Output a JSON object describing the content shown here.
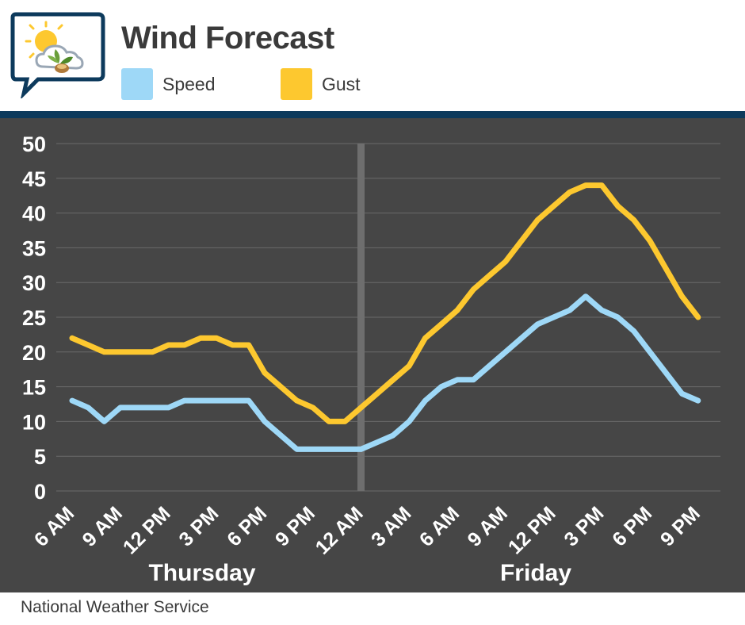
{
  "header": {
    "title": "Wind Forecast",
    "logo_icon": "weather-chat-bubble-icon"
  },
  "footer": {
    "source": "National Weather Service"
  },
  "colors": {
    "speed": "#9ed8f7",
    "gust": "#fdc82f",
    "background": "#464646",
    "divider": "#0d3a5c",
    "grid": "#6a6a6a",
    "midnight_line": "#6e6e6e"
  },
  "chart_data": {
    "type": "line",
    "title": "Wind Forecast",
    "xlabel": "",
    "ylabel": "",
    "ylim": [
      0,
      50
    ],
    "yticks": [
      0,
      5,
      10,
      15,
      20,
      25,
      30,
      35,
      40,
      45,
      50
    ],
    "grid": true,
    "legend_position": "top",
    "x_tick_labels": [
      "6 AM",
      "9 AM",
      "12 PM",
      "3 PM",
      "6 PM",
      "9 PM",
      "12 AM",
      "3 AM",
      "6 AM",
      "9 AM",
      "12 PM",
      "3 PM",
      "6 PM",
      "9 PM"
    ],
    "day_labels": [
      "Thursday",
      "Friday"
    ],
    "x_hours": [
      0,
      1,
      2,
      3,
      4,
      5,
      6,
      7,
      8,
      9,
      10,
      11,
      12,
      13,
      14,
      15,
      16,
      17,
      18,
      19,
      20,
      21,
      22,
      23,
      24,
      25,
      26,
      27,
      28,
      29,
      30,
      31,
      32,
      33,
      34,
      35,
      36,
      37,
      38,
      39
    ],
    "series": [
      {
        "name": "Speed",
        "values": [
          13,
          12,
          10,
          12,
          12,
          12,
          12,
          13,
          13,
          13,
          13,
          13,
          10,
          8,
          6,
          6,
          6,
          6,
          6,
          7,
          8,
          10,
          13,
          15,
          16,
          16,
          18,
          20,
          22,
          24,
          25,
          26,
          28,
          26,
          25,
          23,
          20,
          17,
          14,
          13
        ]
      },
      {
        "name": "Gust",
        "values": [
          22,
          21,
          20,
          20,
          20,
          20,
          21,
          21,
          22,
          22,
          21,
          21,
          17,
          15,
          13,
          12,
          10,
          10,
          12,
          14,
          16,
          18,
          22,
          24,
          26,
          29,
          31,
          33,
          36,
          39,
          41,
          43,
          44,
          44,
          41,
          39,
          36,
          32,
          28,
          25
        ]
      }
    ]
  }
}
